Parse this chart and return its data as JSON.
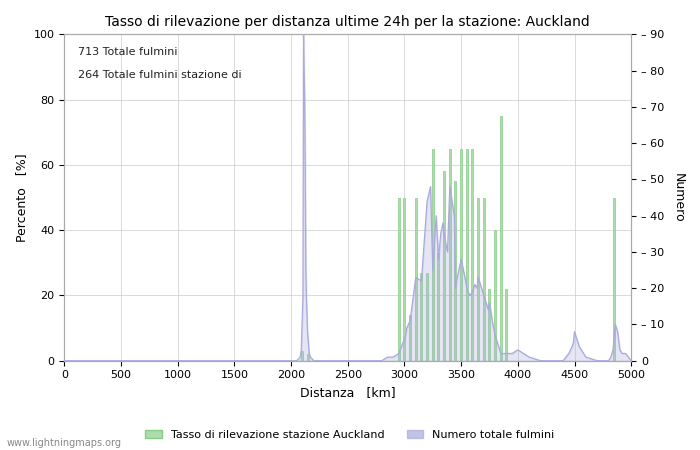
{
  "title": "Tasso di rilevazione per distanza ultime 24h per la stazione: Auckland",
  "xlabel": "Distanza   [km]",
  "ylabel_left": "Percento   [%]",
  "ylabel_right": "Numero",
  "annotation_line1": "713 Totale fulmini",
  "annotation_line2": "264 Totale fulmini stazione di",
  "legend_green": "Tasso di rilevazione stazione Auckland",
  "legend_blue": "Numero totale fulmini",
  "watermark": "www.lightningmaps.org",
  "xlim": [
    0,
    5000
  ],
  "ylim_left": [
    0,
    100
  ],
  "ylim_right": [
    0,
    90
  ],
  "xticks": [
    0,
    500,
    1000,
    1500,
    2000,
    2500,
    3000,
    3500,
    4000,
    4500,
    5000
  ],
  "yticks_left": [
    0,
    20,
    40,
    60,
    80,
    100
  ],
  "yticks_right": [
    0,
    10,
    20,
    30,
    40,
    50,
    60,
    70,
    80,
    90
  ],
  "bar_color": "#aaddaa",
  "bar_edge_color": "#88cc88",
  "line_color": "#aaaadd",
  "background_color": "#ffffff",
  "grid_color": "#cccccc",
  "green_bars_x": [
    2100,
    2150,
    2950,
    3000,
    3050,
    3100,
    3150,
    3200,
    3250,
    3300,
    3350,
    3400,
    3450,
    3500,
    3550,
    3600,
    3650,
    3700,
    3750,
    3800,
    3850,
    3900,
    4850
  ],
  "green_bars_height": [
    3,
    2,
    50,
    50,
    14,
    50,
    27,
    27,
    65,
    33,
    58,
    65,
    55,
    65,
    65,
    65,
    50,
    50,
    22,
    40,
    75,
    22,
    50
  ],
  "blue_line_x": [
    0,
    500,
    1000,
    1500,
    1900,
    2000,
    2050,
    2080,
    2090,
    2100,
    2105,
    2110,
    2115,
    2120,
    2125,
    2130,
    2135,
    2140,
    2145,
    2150,
    2155,
    2160,
    2170,
    2200,
    2300,
    2400,
    2500,
    2600,
    2700,
    2750,
    2800,
    2850,
    2900,
    2950,
    3000,
    3010,
    3020,
    3050,
    3100,
    3150,
    3200,
    3230,
    3250,
    3280,
    3300,
    3320,
    3340,
    3350,
    3360,
    3380,
    3400,
    3420,
    3440,
    3450,
    3460,
    3480,
    3500,
    3520,
    3540,
    3550,
    3560,
    3580,
    3600,
    3620,
    3640,
    3650,
    3680,
    3700,
    3720,
    3740,
    3750,
    3780,
    3800,
    3850,
    3900,
    3950,
    4000,
    4050,
    4100,
    4200,
    4300,
    4400,
    4450,
    4480,
    4490,
    4500,
    4520,
    4540,
    4560,
    4580,
    4600,
    4700,
    4800,
    4820,
    4840,
    4860,
    4880,
    4900,
    4920,
    4950,
    5000
  ],
  "blue_line_y": [
    0,
    0,
    0,
    0,
    0,
    0,
    0,
    1,
    3,
    13,
    18,
    90,
    80,
    72,
    55,
    26,
    18,
    13,
    8,
    6,
    4,
    2,
    1,
    0,
    0,
    0,
    0,
    0,
    0,
    0,
    0,
    1,
    1,
    2,
    6,
    7,
    9,
    11,
    23,
    22,
    44,
    48,
    25,
    40,
    28,
    35,
    38,
    35,
    33,
    30,
    48,
    44,
    40,
    20,
    22,
    25,
    28,
    25,
    22,
    20,
    19,
    18,
    19,
    21,
    20,
    23,
    20,
    18,
    16,
    14,
    16,
    10,
    7,
    2,
    2,
    2,
    3,
    2,
    1,
    0,
    0,
    0,
    2,
    4,
    5,
    8,
    6,
    4,
    3,
    2,
    1,
    0,
    0,
    1,
    3,
    10,
    8,
    3,
    2,
    2,
    0
  ]
}
